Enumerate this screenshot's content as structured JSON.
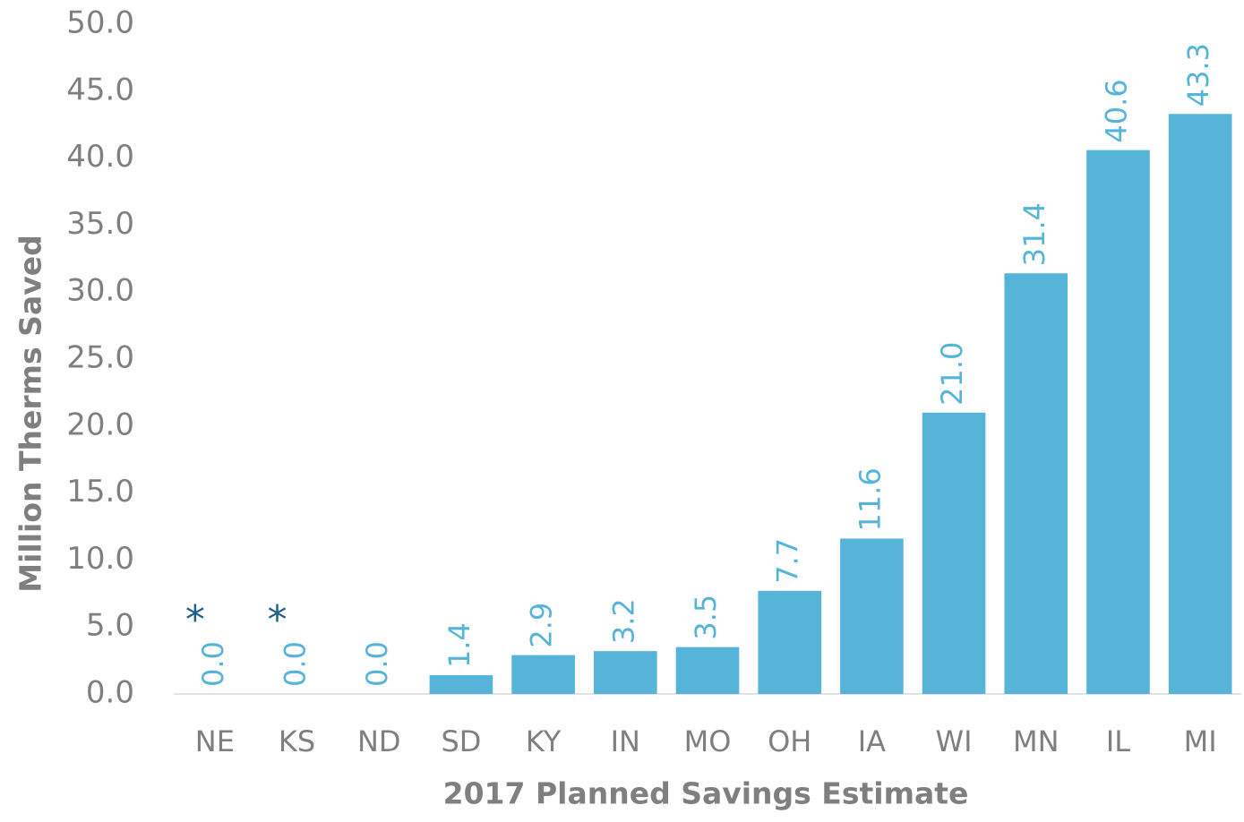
{
  "chart_data": {
    "type": "bar",
    "x_label": "2017 Planned Savings Estimate",
    "y_label": "Million Therms Saved",
    "categories": [
      "NE",
      "KS",
      "ND",
      "SD",
      "KY",
      "IN",
      "MO",
      "OH",
      "IA",
      "WI",
      "MN",
      "IL",
      "MI"
    ],
    "values": [
      0,
      0,
      0,
      1.4,
      2.9,
      3.2,
      3.5,
      7.7,
      11.6,
      21,
      31.4,
      40.6,
      43.3
    ],
    "value_labels": [
      "0.0",
      "0.0",
      "0.0",
      "1.4",
      "2.9",
      "3.2",
      "3.5",
      "7.7",
      "11.6",
      "21.0",
      "31.4",
      "40.6",
      "43.3"
    ],
    "color": "#56b4d9",
    "ylim": [
      0,
      50
    ],
    "yticks": [
      {
        "value": 0,
        "label": "0.0"
      },
      {
        "value": 5,
        "label": "5.0"
      },
      {
        "value": 10,
        "label": "10.0"
      },
      {
        "value": 15,
        "label": "15.0"
      },
      {
        "value": 20,
        "label": "20.0"
      },
      {
        "value": 25,
        "label": "25.0"
      },
      {
        "value": 30,
        "label": "30.0"
      },
      {
        "value": 35,
        "label": "35.0"
      },
      {
        "value": 40,
        "label": "40.0"
      },
      {
        "value": 45,
        "label": "45.0"
      },
      {
        "value": 50,
        "label": "50.0"
      }
    ],
    "grid": false,
    "annotations": [
      {
        "text": "*",
        "category": "NE"
      },
      {
        "text": "*",
        "category": "KS"
      }
    ]
  }
}
